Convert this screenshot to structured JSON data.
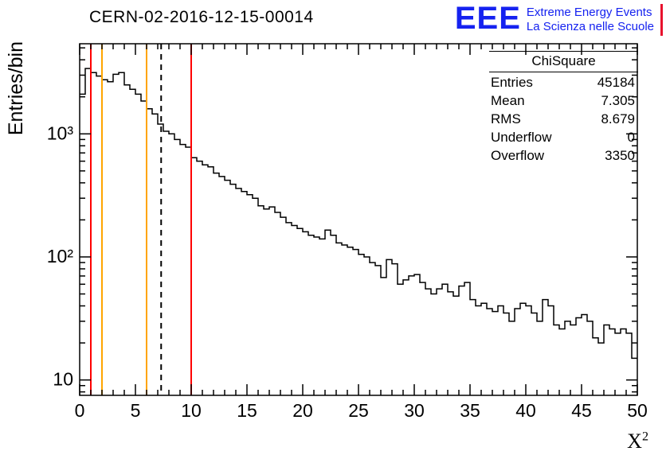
{
  "title": "CERN-02-2016-12-15-00014",
  "logo": {
    "acronym": "EEE",
    "line1": "Extreme Energy Events",
    "line2": "La Scienza nelle Scuole",
    "blue": "#1522f0",
    "red": "#e8112d"
  },
  "stats": {
    "title": "ChiSquare",
    "rows": [
      {
        "label": "Entries",
        "value": "45184"
      },
      {
        "label": "Mean",
        "value": "7.305"
      },
      {
        "label": "RMS",
        "value": "8.679"
      },
      {
        "label": "Underflow",
        "value": "0"
      },
      {
        "label": "Overflow",
        "value": "3350"
      }
    ]
  },
  "axis": {
    "x_base": "X",
    "x_exp": "2"
  },
  "chart_data": {
    "type": "bar",
    "histogram": true,
    "title": "CERN-02-2016-12-15-00014",
    "xlabel": "X²",
    "ylabel": "Entries/bin",
    "xlim": [
      0,
      50
    ],
    "ylim": [
      7.5,
      5400
    ],
    "ylog": true,
    "grid": false,
    "bin_start": 0,
    "bin_width": 0.5,
    "values": [
      2100,
      3400,
      3150,
      2950,
      2750,
      2650,
      3050,
      3150,
      2500,
      2300,
      2100,
      1850,
      1600,
      1450,
      1200,
      1050,
      1000,
      900,
      820,
      780,
      640,
      600,
      560,
      540,
      480,
      450,
      420,
      390,
      360,
      340,
      320,
      300,
      260,
      245,
      255,
      230,
      210,
      190,
      180,
      170,
      160,
      150,
      145,
      140,
      165,
      150,
      130,
      125,
      120,
      115,
      105,
      100,
      90,
      85,
      68,
      95,
      88,
      60,
      65,
      70,
      72,
      62,
      55,
      50,
      55,
      60,
      52,
      48,
      58,
      62,
      45,
      40,
      42,
      38,
      36,
      40,
      35,
      30,
      38,
      42,
      40,
      35,
      30,
      45,
      40,
      28,
      26,
      30,
      28,
      32,
      34,
      30,
      22,
      20,
      28,
      26,
      24,
      26,
      24,
      15
    ],
    "x_ticks": [
      0,
      5,
      10,
      15,
      20,
      25,
      30,
      35,
      40,
      45,
      50
    ],
    "y_ticks": [
      {
        "v": 10,
        "label": "10"
      },
      {
        "v": 100,
        "label": "10²"
      },
      {
        "v": 1000,
        "label": "10³"
      }
    ],
    "marker_lines": [
      {
        "x": 1,
        "color": "#ff0000",
        "dash": null,
        "name": "red-line-x1"
      },
      {
        "x": 2,
        "color": "#ffa500",
        "dash": null,
        "name": "orange-line-x2"
      },
      {
        "x": 6,
        "color": "#ffa500",
        "dash": null,
        "name": "orange-line-x6"
      },
      {
        "x": 7.305,
        "color": "#000000",
        "dash": "7,6",
        "name": "dashed-mean-line"
      },
      {
        "x": 10,
        "color": "#ff0000",
        "dash": null,
        "name": "red-line-x10"
      }
    ],
    "line_color": "#000000"
  }
}
